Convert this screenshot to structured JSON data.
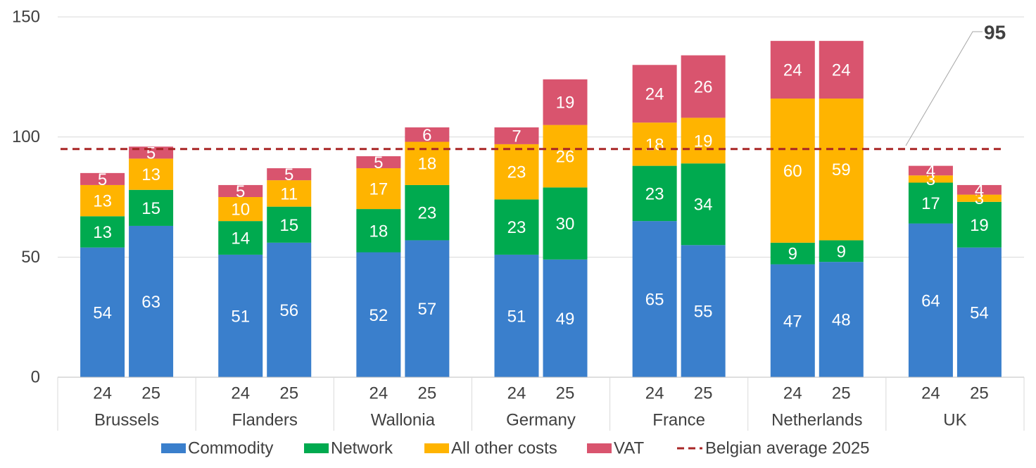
{
  "chart_data": {
    "type": "bar",
    "stacked": true,
    "title": "",
    "xlabel": "",
    "ylabel": "",
    "ylim": [
      0,
      150
    ],
    "yticks": [
      0,
      50,
      100,
      150
    ],
    "grid": true,
    "legend_position": "bottom",
    "groups": [
      {
        "name": "Brussels",
        "bars": [
          {
            "label": "24",
            "values": [
              54,
              13,
              13,
              5
            ]
          },
          {
            "label": "25",
            "values": [
              63,
              15,
              13,
              5
            ]
          }
        ]
      },
      {
        "name": "Flanders",
        "bars": [
          {
            "label": "24",
            "values": [
              51,
              14,
              10,
              5
            ]
          },
          {
            "label": "25",
            "values": [
              56,
              15,
              11,
              5
            ]
          }
        ]
      },
      {
        "name": "Wallonia",
        "bars": [
          {
            "label": "24",
            "values": [
              52,
              18,
              17,
              5
            ]
          },
          {
            "label": "25",
            "values": [
              57,
              23,
              18,
              6
            ]
          }
        ]
      },
      {
        "name": "Germany",
        "bars": [
          {
            "label": "24",
            "values": [
              51,
              23,
              23,
              7
            ]
          },
          {
            "label": "25",
            "values": [
              49,
              30,
              26,
              19
            ]
          }
        ]
      },
      {
        "name": "France",
        "bars": [
          {
            "label": "24",
            "values": [
              65,
              23,
              18,
              24
            ]
          },
          {
            "label": "25",
            "values": [
              55,
              34,
              19,
              26
            ]
          }
        ]
      },
      {
        "name": "Netherlands",
        "bars": [
          {
            "label": "24",
            "values": [
              47,
              9,
              60,
              24
            ]
          },
          {
            "label": "25",
            "values": [
              48,
              9,
              59,
              24
            ]
          }
        ]
      },
      {
        "name": "UK",
        "bars": [
          {
            "label": "24",
            "values": [
              64,
              17,
              3,
              4
            ]
          },
          {
            "label": "25",
            "values": [
              54,
              19,
              3,
              4
            ]
          }
        ]
      }
    ],
    "series": [
      {
        "name": "Commodity",
        "color": "#3A7FCC"
      },
      {
        "name": "Network",
        "color": "#00AA4F"
      },
      {
        "name": "All other costs",
        "color": "#FFB400"
      },
      {
        "name": "VAT",
        "color": "#D9546E"
      }
    ],
    "reference_line": {
      "name": "Belgian average 2025",
      "value": 95,
      "label": "95",
      "color": "#A82626"
    }
  }
}
